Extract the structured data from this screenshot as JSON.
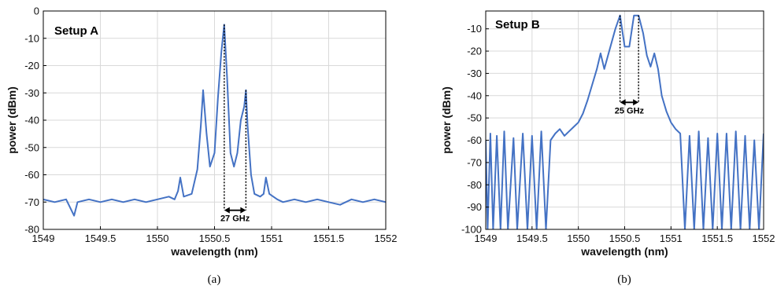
{
  "chart_data": [
    {
      "type": "line",
      "title": "Setup A",
      "caption": "(a)",
      "xlabel": "wavelength (nm)",
      "ylabel": "power (dBm)",
      "xlim": [
        1549,
        1552
      ],
      "ylim": [
        -80,
        0
      ],
      "xticks": [
        1549,
        1549.5,
        1550,
        1550.5,
        1551,
        1551.5,
        1552
      ],
      "xtick_labels": [
        "1549",
        "1549.5",
        "1550",
        "1550.5",
        "1551",
        "1551.5",
        "1552"
      ],
      "yticks": [
        0,
        -10,
        -20,
        -30,
        -40,
        -50,
        -60,
        -70,
        -80
      ],
      "ytick_labels": [
        "0",
        "-10",
        "-20",
        "-30",
        "-40",
        "-50",
        "-60",
        "-70",
        "-80"
      ],
      "grid": true,
      "color": "#4472c4",
      "annotation": {
        "text": "27 GHz",
        "x_start": 1550.585,
        "x_end": 1550.775,
        "y": -73
      },
      "series": [
        {
          "x": [
            1549.0,
            1549.1,
            1549.2,
            1549.27,
            1549.3,
            1549.4,
            1549.5,
            1549.6,
            1549.7,
            1549.8,
            1549.9,
            1550.0,
            1550.1,
            1550.15,
            1550.18,
            1550.2,
            1550.23,
            1550.3,
            1550.35,
            1550.38,
            1550.4,
            1550.43,
            1550.46,
            1550.5,
            1550.53,
            1550.56,
            1550.585,
            1550.61,
            1550.64,
            1550.67,
            1550.7,
            1550.73,
            1550.76,
            1550.775,
            1550.79,
            1550.82,
            1550.85,
            1550.9,
            1550.93,
            1550.95,
            1550.98,
            1551.05,
            1551.1,
            1551.2,
            1551.3,
            1551.4,
            1551.5,
            1551.6,
            1551.7,
            1551.8,
            1551.9,
            1552.0
          ],
          "y": [
            -69,
            -70,
            -69,
            -75,
            -70,
            -69,
            -70,
            -69,
            -70,
            -69,
            -70,
            -69,
            -68,
            -69,
            -66,
            -61,
            -68,
            -67,
            -58,
            -42,
            -29,
            -45,
            -57,
            -52,
            -32,
            -15,
            -5,
            -24,
            -52,
            -57,
            -52,
            -40,
            -35,
            -29,
            -42,
            -60,
            -67,
            -68,
            -67,
            -61,
            -67,
            -69,
            -70,
            -69,
            -70,
            -69,
            -70,
            -71,
            -69,
            -70,
            -69,
            -70
          ]
        }
      ]
    },
    {
      "type": "line",
      "title": "Setup B",
      "caption": "(b)",
      "xlabel": "wavelength (nm)",
      "ylabel": "power (dBm)",
      "xlim": [
        1549,
        1552
      ],
      "ylim": [
        -100,
        -2
      ],
      "xticks": [
        1549,
        1549.5,
        1550,
        1550.5,
        1551,
        1551.5,
        1552
      ],
      "xtick_labels": [
        "1549",
        "1549.5",
        "1550",
        "1550.5",
        "1551",
        "1551.5",
        "1552"
      ],
      "yticks": [
        -10,
        -20,
        -30,
        -40,
        -50,
        -60,
        -70,
        -80,
        -90,
        -100
      ],
      "ytick_labels": [
        "-10",
        "-20",
        "-30",
        "-40",
        "-50",
        "-60",
        "-70",
        "-80",
        "-90",
        "-100"
      ],
      "grid": true,
      "color": "#4472c4",
      "annotation": {
        "text": "25 GHz",
        "x_start": 1550.45,
        "x_end": 1550.65,
        "y": -43
      },
      "series": [
        {
          "x": [
            1549.0,
            1549.02,
            1549.05,
            1549.08,
            1549.12,
            1549.16,
            1549.2,
            1549.24,
            1549.3,
            1549.34,
            1549.4,
            1549.45,
            1549.5,
            1549.55,
            1549.6,
            1549.65,
            1549.7,
            1549.75,
            1549.8,
            1549.85,
            1549.9,
            1549.95,
            1550.0,
            1550.05,
            1550.1,
            1550.15,
            1550.2,
            1550.24,
            1550.28,
            1550.32,
            1550.36,
            1550.4,
            1550.45,
            1550.5,
            1550.55,
            1550.6,
            1550.65,
            1550.7,
            1550.74,
            1550.78,
            1550.82,
            1550.86,
            1550.9,
            1550.95,
            1551.0,
            1551.05,
            1551.1,
            1551.15,
            1551.2,
            1551.25,
            1551.3,
            1551.35,
            1551.4,
            1551.45,
            1551.5,
            1551.55,
            1551.6,
            1551.65,
            1551.7,
            1551.75,
            1551.8,
            1551.85,
            1551.9,
            1551.95,
            1552.0
          ],
          "y": [
            -60,
            -100,
            -57,
            -100,
            -58,
            -100,
            -56,
            -100,
            -59,
            -100,
            -57,
            -100,
            -58,
            -100,
            -56,
            -100,
            -60,
            -57,
            -55,
            -58,
            -56,
            -54,
            -52,
            -48,
            -42,
            -35,
            -28,
            -21,
            -28,
            -22,
            -16,
            -10,
            -4,
            -18,
            -18,
            -4,
            -4,
            -12,
            -22,
            -27,
            -21,
            -28,
            -40,
            -47,
            -52,
            -55,
            -57,
            -100,
            -58,
            -100,
            -56,
            -100,
            -59,
            -100,
            -57,
            -100,
            -57,
            -100,
            -56,
            -100,
            -58,
            -100,
            -60,
            -100,
            -57
          ]
        }
      ]
    }
  ]
}
